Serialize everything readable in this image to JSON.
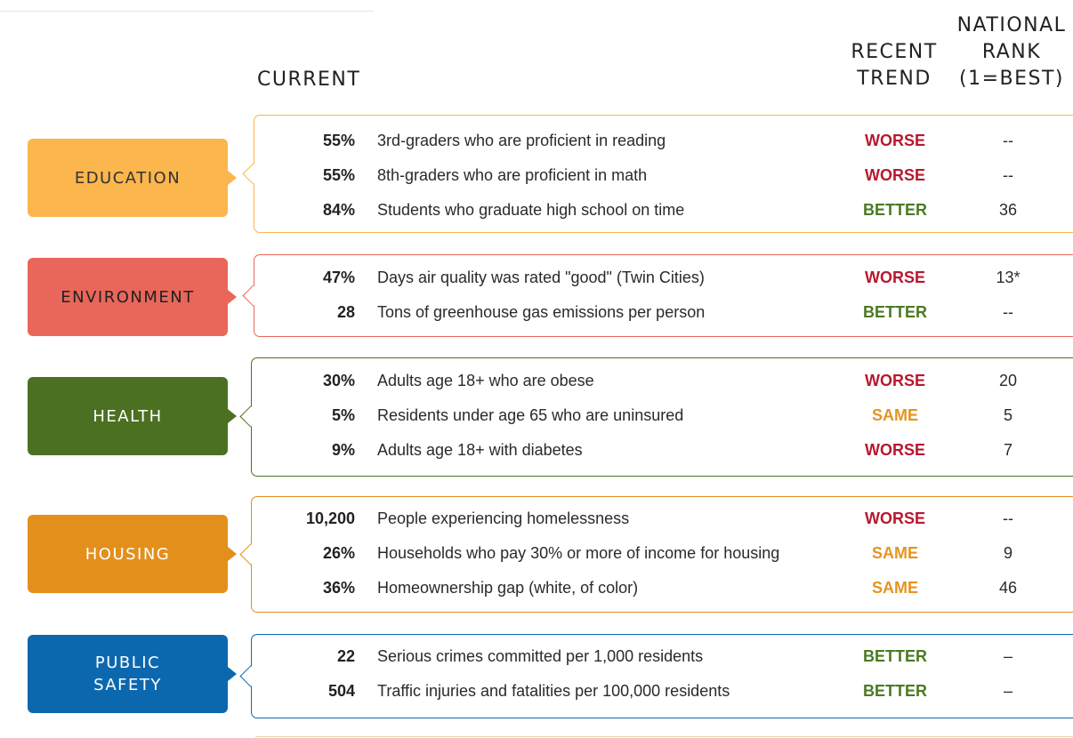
{
  "headers": {
    "current": "CURRENT",
    "trend": [
      "RECENT",
      "TREND"
    ],
    "rank": [
      "NATIONAL",
      "RANK",
      "(1=BEST)"
    ]
  },
  "colors": {
    "education": "#fbb64e",
    "environment": "#e8675a",
    "health": "#4c7021",
    "housing": "#e38f1b",
    "public_safety": "#0c68ae",
    "worse": "#b8182f",
    "better": "#4a7a23",
    "same": "#e5951e"
  },
  "categories": [
    {
      "key": "education",
      "label": "EDUCATION",
      "text_color": "#333333",
      "rows": [
        {
          "value": "55%",
          "desc": "3rd-graders who are proficient in reading",
          "trend": "WORSE",
          "rank": "--"
        },
        {
          "value": "55%",
          "desc": "8th-graders who are proficient in math",
          "trend": "WORSE",
          "rank": "--"
        },
        {
          "value": "84%",
          "desc": "Students who graduate high school on time",
          "trend": "BETTER",
          "rank": "36"
        }
      ]
    },
    {
      "key": "environment",
      "label": "ENVIRONMENT",
      "text_color": "#222222",
      "rows": [
        {
          "value": "47%",
          "desc": "Days air quality was rated \"good\" (Twin Cities)",
          "trend": "WORSE",
          "rank": "13*"
        },
        {
          "value": "28",
          "desc": "Tons of greenhouse gas emissions per person",
          "trend": "BETTER",
          "rank": "--"
        }
      ]
    },
    {
      "key": "health",
      "label": "HEALTH",
      "text_color": "#ffffff",
      "rows": [
        {
          "value": "30%",
          "desc": "Adults age 18+ who are obese",
          "trend": "WORSE",
          "rank": "20"
        },
        {
          "value": "5%",
          "desc": "Residents under age 65 who are uninsured",
          "trend": "SAME",
          "rank": "5"
        },
        {
          "value": "9%",
          "desc": "Adults age 18+ with diabetes",
          "trend": "WORSE",
          "rank": "7"
        }
      ]
    },
    {
      "key": "housing",
      "label": "HOUSING",
      "text_color": "#ffffff",
      "rows": [
        {
          "value": "10,200",
          "desc": "People experiencing homelessness",
          "trend": "WORSE",
          "rank": "--"
        },
        {
          "value": "26%",
          "desc": "Households who pay 30% or more of income for housing",
          "trend": "SAME",
          "rank": "9"
        },
        {
          "value": "36%",
          "desc": "Homeownership gap (white, of color)",
          "trend": "SAME",
          "rank": "46"
        }
      ]
    },
    {
      "key": "public_safety",
      "label": "PUBLIC\nSAFETY",
      "text_color": "#ffffff",
      "rows": [
        {
          "value": "22",
          "desc": "Serious crimes committed per 1,000 residents",
          "trend": "BETTER",
          "rank": "–"
        },
        {
          "value": "504",
          "desc": "Traffic injuries and fatalities per 100,000 residents",
          "trend": "BETTER",
          "rank": "–"
        }
      ]
    }
  ]
}
